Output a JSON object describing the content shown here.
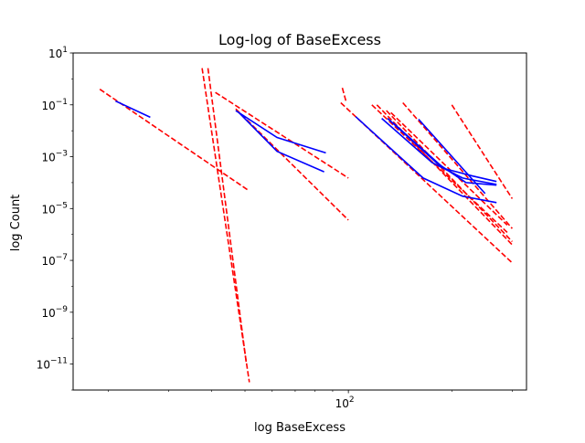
{
  "chart_data": {
    "type": "line",
    "title": "Log-log of BaseExcess",
    "xlabel": "log BaseExcess",
    "ylabel": "log Count",
    "xscale": "log",
    "yscale": "log",
    "xlim": [
      15.8,
      330
    ],
    "ylim": [
      1e-12,
      10
    ],
    "grid": false,
    "y_ticks": [
      {
        "value": 10,
        "base": "10",
        "exp": "1"
      },
      {
        "value": 0.1,
        "base": "10",
        "exp": "−1"
      },
      {
        "value": 0.001,
        "base": "10",
        "exp": "−3"
      },
      {
        "value": 1e-05,
        "base": "10",
        "exp": "−5"
      },
      {
        "value": 1e-07,
        "base": "10",
        "exp": "−7"
      },
      {
        "value": 1e-09,
        "base": "10",
        "exp": "−9"
      },
      {
        "value": 1e-11,
        "base": "10",
        "exp": "−11"
      }
    ],
    "x_ticks": [
      {
        "value": 100,
        "base": "10",
        "exp": "2"
      }
    ],
    "x_minor_ticks": [
      20,
      30,
      40,
      50,
      60,
      70,
      80,
      90,
      200,
      300
    ],
    "series": [
      {
        "style": "fit",
        "color": "#ff0000",
        "points": [
          [
            18.9,
            0.4
          ],
          [
            51,
            5.2e-05
          ]
        ]
      },
      {
        "style": "fit",
        "color": "#ff0000",
        "points": [
          [
            37.5,
            2.6
          ],
          [
            51.5,
            2e-12
          ]
        ]
      },
      {
        "style": "fit",
        "color": "#ff0000",
        "points": [
          [
            39,
            2.6
          ],
          [
            50.5,
            1e-11
          ]
        ]
      },
      {
        "style": "fit",
        "color": "#ff0000",
        "points": [
          [
            41,
            0.3
          ],
          [
            100,
            0.00015
          ]
        ]
      },
      {
        "style": "fit",
        "color": "#ff0000",
        "points": [
          [
            47,
            0.07
          ],
          [
            100,
            3.6e-06
          ]
        ]
      },
      {
        "style": "fit",
        "color": "#ff0000",
        "points": [
          [
            96,
            0.45
          ],
          [
            98.5,
            0.13
          ]
        ]
      },
      {
        "style": "fit",
        "color": "#ff0000",
        "points": [
          [
            95,
            0.12
          ],
          [
            300,
            8e-08
          ]
        ]
      },
      {
        "style": "fit",
        "color": "#ff0000",
        "points": [
          [
            117,
            0.1
          ],
          [
            290,
            1.2e-06
          ]
        ]
      },
      {
        "style": "fit",
        "color": "#ff0000",
        "points": [
          [
            121,
            0.1
          ],
          [
            300,
            4e-07
          ]
        ]
      },
      {
        "style": "fit",
        "color": "#ff0000",
        "points": [
          [
            129,
            0.06
          ],
          [
            300,
            5.3e-07
          ]
        ]
      },
      {
        "style": "fit",
        "color": "#ff0000",
        "points": [
          [
            144,
            0.12
          ],
          [
            300,
            1.7e-06
          ]
        ]
      },
      {
        "style": "fit",
        "color": "#ff0000",
        "points": [
          [
            133,
            0.05
          ],
          [
            290,
            2.3e-06
          ]
        ]
      },
      {
        "style": "fit",
        "color": "#ff0000",
        "points": [
          [
            200,
            0.1
          ],
          [
            300,
            2.4e-05
          ]
        ]
      },
      {
        "style": "data",
        "color": "#0000ff",
        "points": [
          [
            21,
            0.14
          ],
          [
            26.5,
            0.033
          ]
        ]
      },
      {
        "style": "data",
        "color": "#0000ff",
        "points": [
          [
            47,
            0.06
          ],
          [
            62,
            0.0055
          ],
          [
            86,
            0.0014
          ]
        ]
      },
      {
        "style": "data",
        "color": "#0000ff",
        "points": [
          [
            48,
            0.05
          ],
          [
            62,
            0.0016
          ],
          [
            85,
            0.00026
          ]
        ]
      },
      {
        "style": "data",
        "color": "#0000ff",
        "points": [
          [
            105,
            0.035
          ],
          [
            165,
            0.00015
          ],
          [
            215,
            3e-05
          ],
          [
            270,
            1.7e-05
          ]
        ]
      },
      {
        "style": "data",
        "color": "#0000ff",
        "points": [
          [
            125,
            0.03
          ],
          [
            175,
            0.0006
          ],
          [
            215,
            0.00015
          ],
          [
            270,
            8.5e-05
          ]
        ]
      },
      {
        "style": "data",
        "color": "#0000ff",
        "points": [
          [
            130,
            0.03
          ],
          [
            180,
            0.0006
          ],
          [
            220,
            0.0001
          ],
          [
            270,
            8e-05
          ]
        ]
      },
      {
        "style": "data",
        "color": "#0000ff",
        "points": [
          [
            135,
            0.02
          ],
          [
            190,
            0.00035
          ],
          [
            230,
            0.00018
          ],
          [
            270,
            0.00011
          ]
        ]
      },
      {
        "style": "data",
        "color": "#0000ff",
        "points": [
          [
            160,
            0.028
          ],
          [
            220,
            0.00025
          ],
          [
            250,
            3.8e-05
          ]
        ]
      }
    ]
  }
}
